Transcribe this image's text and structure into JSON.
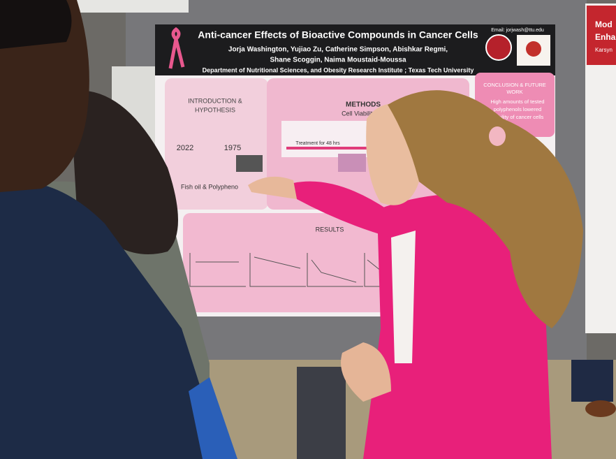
{
  "poster": {
    "title": "Anti-cancer Effects of Bioactive Compounds in Cancer Cells",
    "authors_line1": "Jorja Washington, Yujiao Zu, Catherine Simpson, Abishkar Regmi,",
    "authors_line2": "Shane Scoggin, Naima Moustaid-Moussa",
    "affiliation": "Department of Nutritional Sciences, and Obesity Research Institute ; Texas Tech University",
    "email": "Email: jorjwash@ttu.edu",
    "intro_heading_1": "INTRODUCTION &",
    "intro_heading_2": "HYPOTHESIS",
    "year_1": "2022",
    "year_2": "1975",
    "intro_caption": "Fish oil & Polypheno",
    "methods_heading": "METHODS",
    "methods_subheading": "Cell Viability (M",
    "methods_treatment": "Treatment for 48 hrs",
    "conclusion_heading_1": "CONCLUSION & FUTURE",
    "conclusion_heading_2": "WORK",
    "conclusion_line1": "High amounts of tested",
    "conclusion_line2": "polyphenols lowered",
    "conclusion_line3": "viability of cancer cells",
    "results_heading": "RESULTS"
  },
  "side_poster": {
    "title_1": "Mod",
    "title_2": "Enha",
    "author": "Karsyn"
  }
}
